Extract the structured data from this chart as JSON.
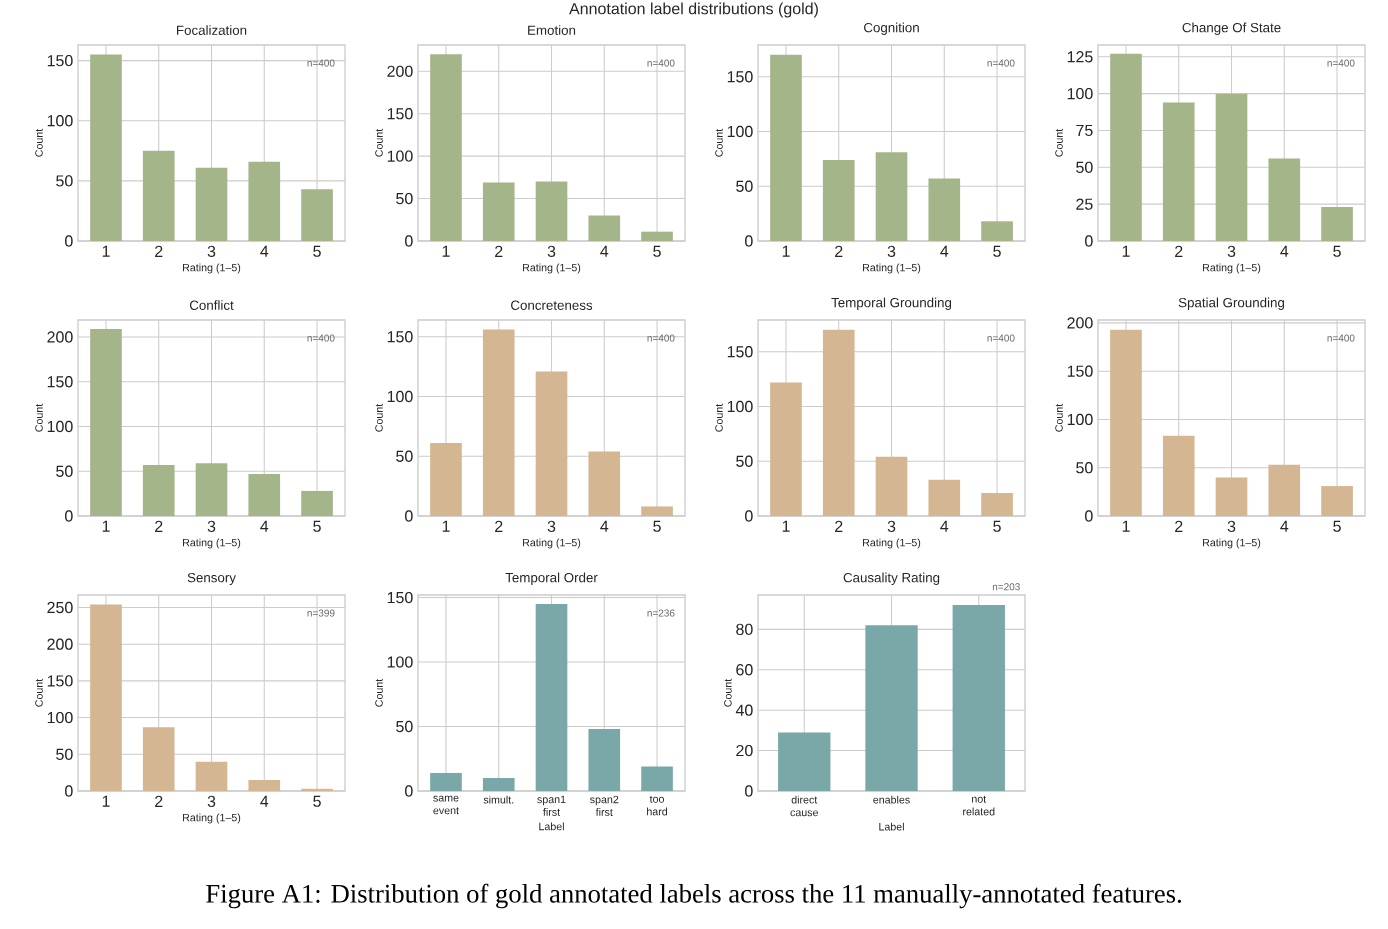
{
  "chart_data": [
    {
      "type": "bar",
      "title": "Focalization",
      "xlabel": "Rating (1–5)",
      "ylabel": "Count",
      "categories": [
        "1",
        "2",
        "3",
        "4",
        "5"
      ],
      "values": [
        155,
        75,
        61,
        66,
        43
      ],
      "color": "#a5b58a",
      "ylim": [
        0,
        163
      ],
      "yticks": [
        0,
        50,
        100,
        150
      ],
      "grid": true,
      "annotations": [
        "n=400"
      ]
    },
    {
      "type": "bar",
      "title": "Emotion",
      "xlabel": "Rating (1–5)",
      "ylabel": "Count",
      "categories": [
        "1",
        "2",
        "3",
        "4",
        "5"
      ],
      "values": [
        220,
        69,
        70,
        30,
        11
      ],
      "color": "#a5b58a",
      "ylim": [
        0,
        231
      ],
      "yticks": [
        0,
        50,
        100,
        150,
        200
      ],
      "grid": true,
      "annotations": [
        "n=400"
      ]
    },
    {
      "type": "bar",
      "title": "Cognition",
      "xlabel": "Rating (1–5)",
      "ylabel": "Count",
      "categories": [
        "1",
        "2",
        "3",
        "4",
        "5"
      ],
      "values": [
        170,
        74,
        81,
        57,
        18
      ],
      "color": "#a5b58a",
      "ylim": [
        0,
        179
      ],
      "yticks": [
        0,
        50,
        100,
        150
      ],
      "grid": true,
      "annotations": [
        "n=400"
      ]
    },
    {
      "type": "bar",
      "title": "Change Of State",
      "xlabel": "Rating (1–5)",
      "ylabel": "Count",
      "categories": [
        "1",
        "2",
        "3",
        "4",
        "5"
      ],
      "values": [
        127,
        94,
        100,
        56,
        23
      ],
      "color": "#a5b58a",
      "ylim": [
        0,
        133
      ],
      "yticks": [
        0,
        25,
        50,
        75,
        100,
        125
      ],
      "grid": true,
      "annotations": [
        "n=400"
      ]
    },
    {
      "type": "bar",
      "title": "Conflict",
      "xlabel": "Rating (1–5)",
      "ylabel": "Count",
      "categories": [
        "1",
        "2",
        "3",
        "4",
        "5"
      ],
      "values": [
        209,
        57,
        59,
        47,
        28
      ],
      "color": "#a5b58a",
      "ylim": [
        0,
        219
      ],
      "yticks": [
        0,
        50,
        100,
        150,
        200
      ],
      "grid": true,
      "annotations": [
        "n=400"
      ]
    },
    {
      "type": "bar",
      "title": "Concreteness",
      "xlabel": "Rating (1–5)",
      "ylabel": "Count",
      "categories": [
        "1",
        "2",
        "3",
        "4",
        "5"
      ],
      "values": [
        61,
        156,
        121,
        54,
        8
      ],
      "color": "#d4b692",
      "ylim": [
        0,
        164
      ],
      "yticks": [
        0,
        50,
        100,
        150
      ],
      "grid": true,
      "annotations": [
        "n=400"
      ]
    },
    {
      "type": "bar",
      "title": "Temporal Grounding",
      "xlabel": "Rating (1–5)",
      "ylabel": "Count",
      "categories": [
        "1",
        "2",
        "3",
        "4",
        "5"
      ],
      "values": [
        122,
        170,
        54,
        33,
        21
      ],
      "color": "#d4b692",
      "ylim": [
        0,
        179
      ],
      "yticks": [
        0,
        50,
        100,
        150
      ],
      "grid": true,
      "annotations": [
        "n=400"
      ]
    },
    {
      "type": "bar",
      "title": "Spatial Grounding",
      "xlabel": "Rating (1–5)",
      "ylabel": "Count",
      "categories": [
        "1",
        "2",
        "3",
        "4",
        "5"
      ],
      "values": [
        193,
        83,
        40,
        53,
        31
      ],
      "color": "#d4b692",
      "ylim": [
        0,
        203
      ],
      "yticks": [
        0,
        50,
        100,
        150,
        200
      ],
      "grid": true,
      "annotations": [
        "n=400"
      ]
    },
    {
      "type": "bar",
      "title": "Sensory",
      "xlabel": "Rating (1–5)",
      "ylabel": "Count",
      "categories": [
        "1",
        "2",
        "3",
        "4",
        "5"
      ],
      "values": [
        254,
        87,
        40,
        15,
        3
      ],
      "color": "#d4b692",
      "ylim": [
        0,
        267
      ],
      "yticks": [
        0,
        50,
        100,
        150,
        200,
        250
      ],
      "grid": true,
      "annotations": [
        "n=399"
      ]
    },
    {
      "type": "bar",
      "title": "Temporal Order",
      "xlabel": "Label",
      "ylabel": "Count",
      "categories": [
        "same event",
        "simult.",
        "span1 first",
        "span2 first",
        "too hard"
      ],
      "values": [
        14,
        10,
        145,
        48,
        19
      ],
      "color": "#7aa8a8",
      "ylim": [
        0,
        152
      ],
      "yticks": [
        0,
        50,
        100,
        150
      ],
      "grid": true,
      "annotations": [
        "n=236"
      ]
    },
    {
      "type": "bar",
      "title": "Causality Rating",
      "xlabel": "Label",
      "ylabel": "Count",
      "categories": [
        "direct cause",
        "enables",
        "not related"
      ],
      "values": [
        29,
        82,
        92
      ],
      "color": "#7aa8a8",
      "ylim": [
        0,
        97
      ],
      "yticks": [
        0,
        20,
        40,
        60,
        80
      ],
      "grid": true,
      "annotations": [
        "n=203"
      ]
    },
    {
      "type": "other",
      "title": "Annotation label distributions (gold)",
      "annotations": [
        "Figure A1: Distribution of gold annotated labels across the 11 manually-annotated features."
      ]
    }
  ]
}
